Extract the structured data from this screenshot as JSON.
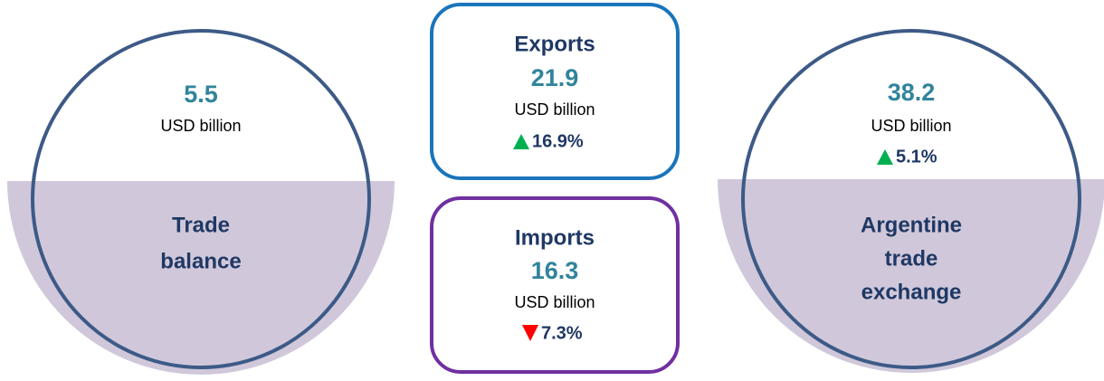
{
  "trade_balance": {
    "value": "5.5",
    "unit": "USD billion",
    "label_lines": [
      "Trade",
      "balance"
    ]
  },
  "exports": {
    "title": "Exports",
    "value": "21.9",
    "unit": "USD billion",
    "change": "16.9%"
  },
  "imports": {
    "title": "Imports",
    "value": "16.3",
    "unit": "USD billion",
    "change": "7.3%"
  },
  "trade_exchange": {
    "value": "38.2",
    "unit": "USD billion",
    "change": "5.1%",
    "label_lines": [
      "Argentine",
      "trade",
      "exchange"
    ]
  }
}
